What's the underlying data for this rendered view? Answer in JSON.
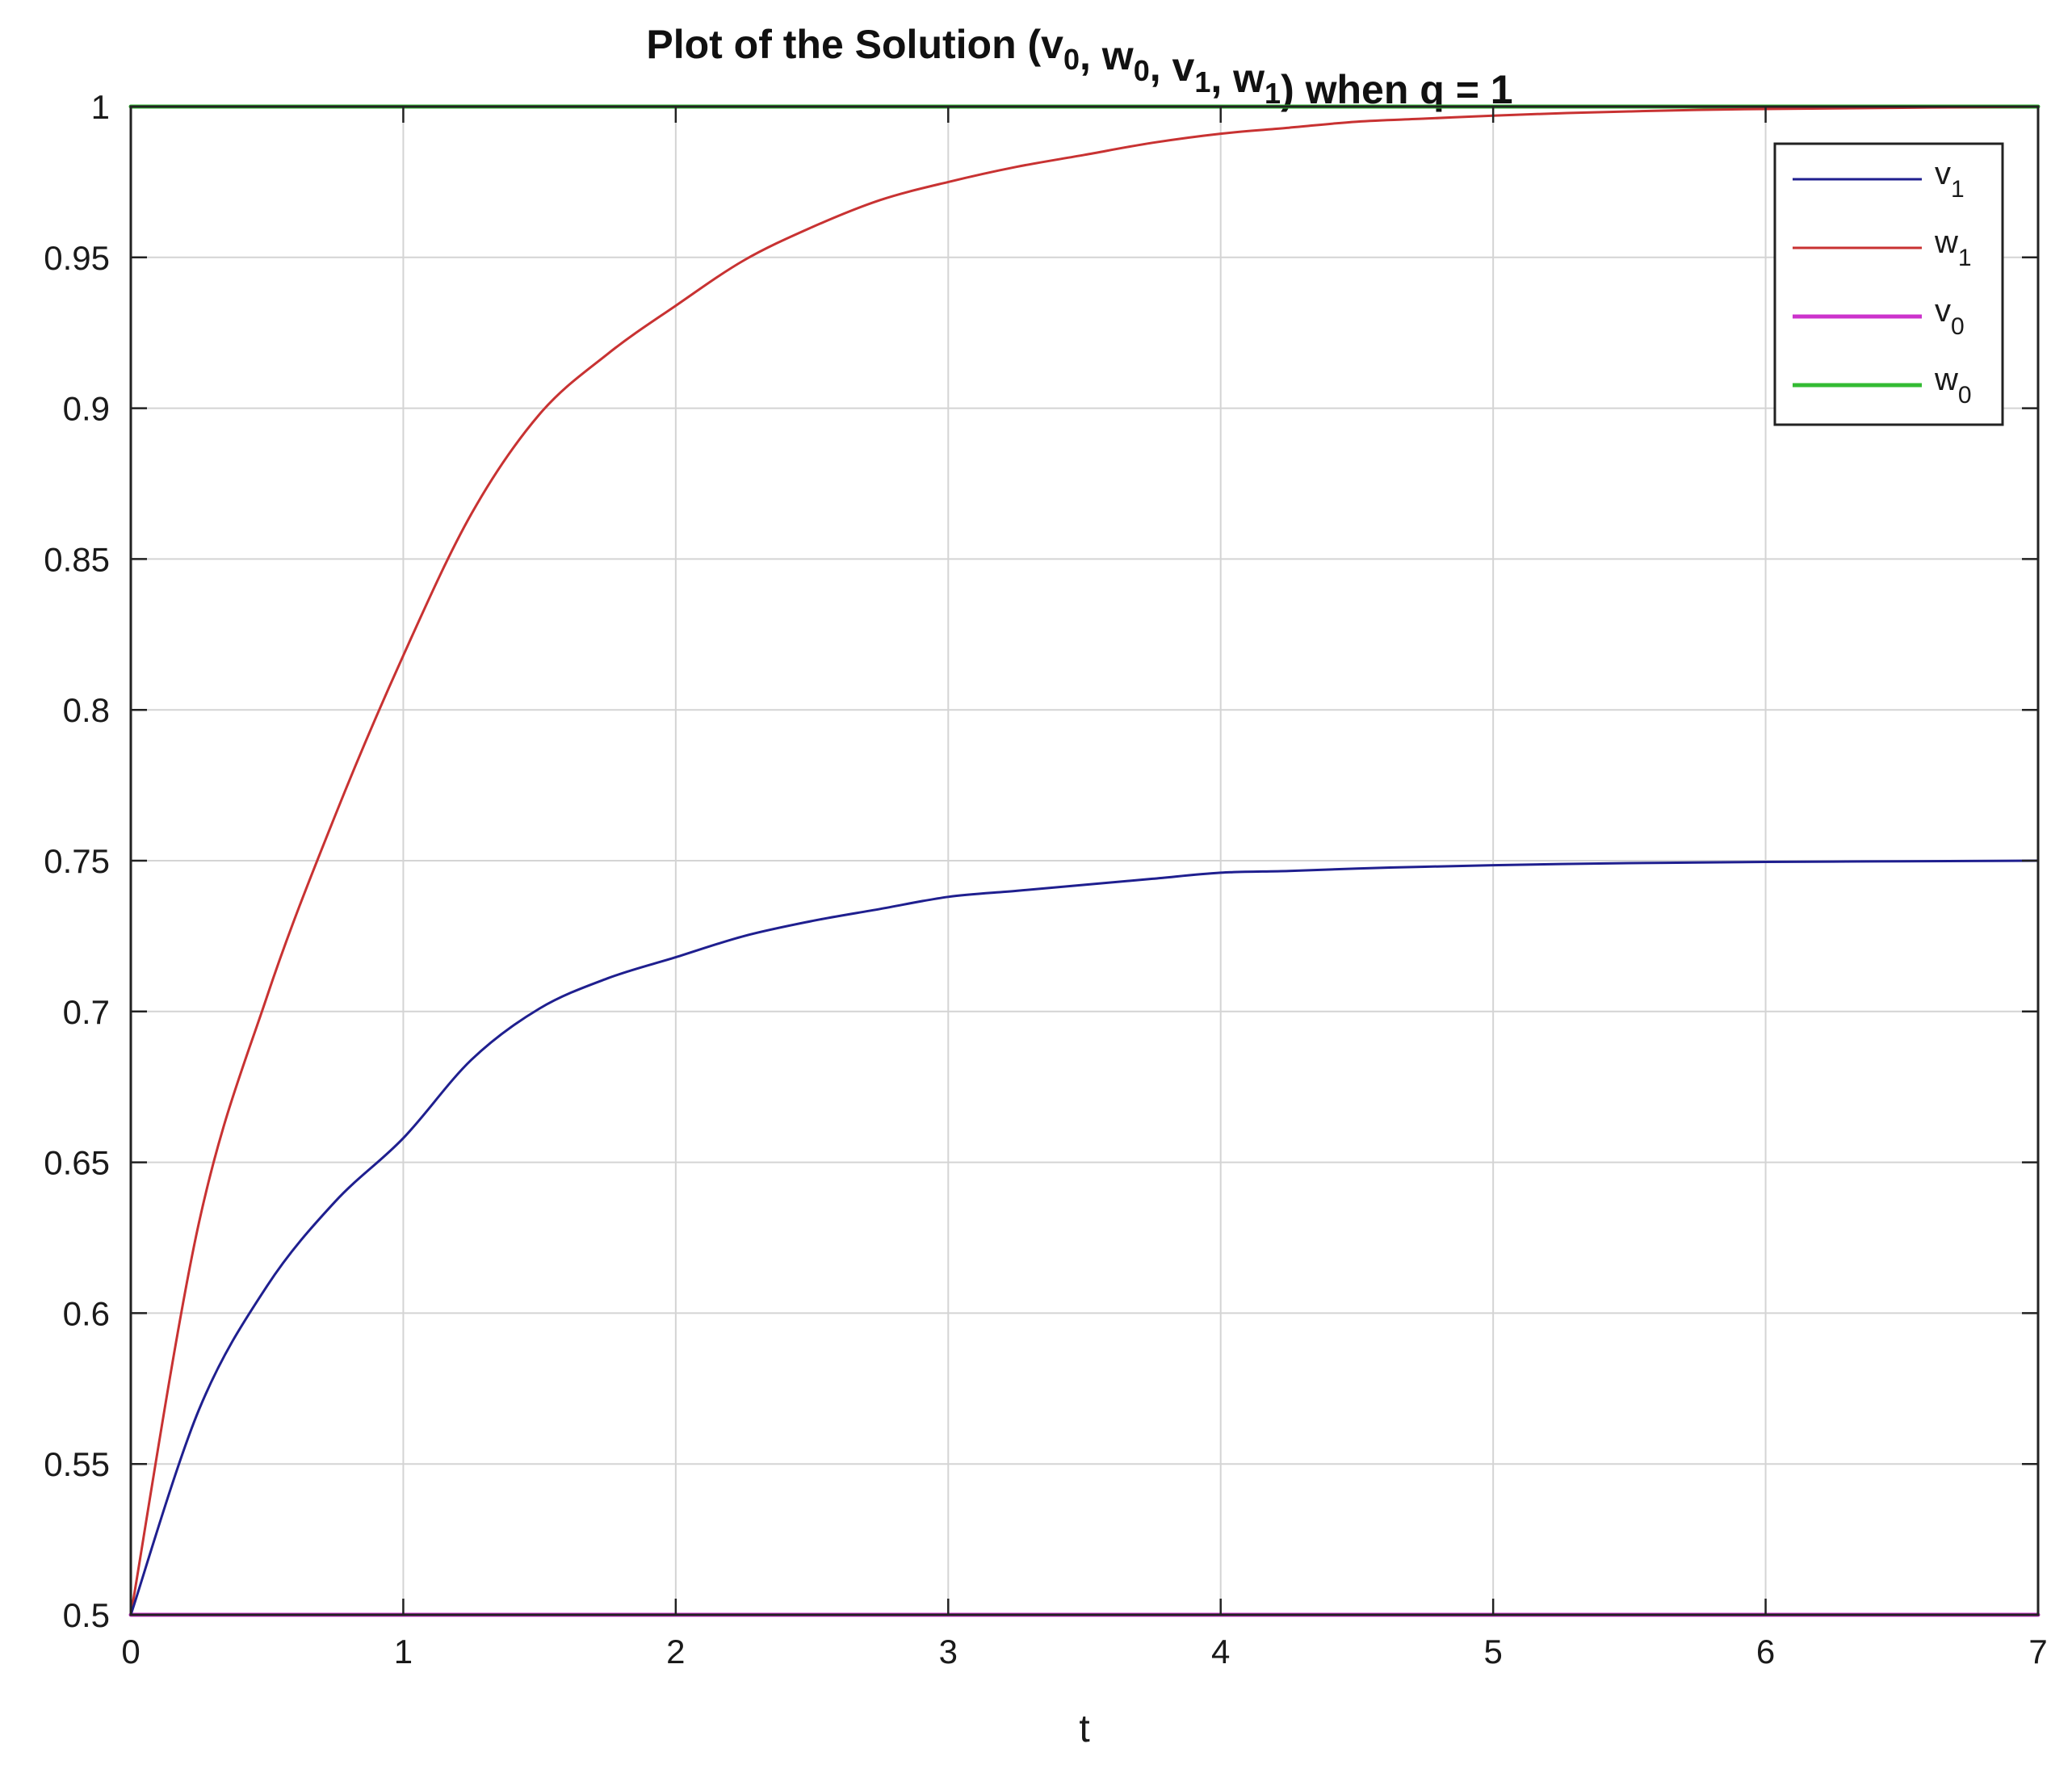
{
  "chart_data": {
    "type": "line",
    "title": {
      "main": "Plot of the Solution (v",
      "parts": [
        {
          "text": "Plot of the Solution (v",
          "sub": "0"
        },
        {
          "text": ", w",
          "sub": "0"
        },
        {
          "text": ", v",
          "sub": "1"
        },
        {
          "text": ", w",
          "sub": "1"
        },
        {
          "text": ") when q = 1",
          "sub": ""
        }
      ]
    },
    "xlabel": "t",
    "ylabel": "",
    "xlim": [
      0,
      7
    ],
    "ylim": [
      0.5,
      1
    ],
    "xticks": [
      0,
      1,
      2,
      3,
      4,
      5,
      6,
      7
    ],
    "yticks": [
      0.5,
      0.55,
      0.6,
      0.65,
      0.7,
      0.75,
      0.8,
      0.85,
      0.9,
      0.95,
      1
    ],
    "xtick_labels": [
      "0",
      "1",
      "2",
      "3",
      "4",
      "5",
      "6",
      "7"
    ],
    "ytick_labels": [
      "0.5",
      "0.55",
      "0.6",
      "0.65",
      "0.7",
      "0.75",
      "0.8",
      "0.85",
      "0.9",
      "0.95",
      "1"
    ],
    "grid": true,
    "legend_position": "top-right",
    "x": [
      0,
      0.25,
      0.5,
      0.75,
      1,
      1.25,
      1.5,
      1.75,
      2,
      2.25,
      2.5,
      2.75,
      3,
      3.25,
      3.5,
      3.75,
      4,
      4.25,
      4.5,
      4.75,
      5,
      5.25,
      5.5,
      5.75,
      6,
      6.25,
      6.5,
      6.75,
      7
    ],
    "series": [
      {
        "name": "v",
        "sub": "1",
        "color": "#1f1f8f",
        "values": [
          0.5,
          0.568,
          0.609,
          0.637,
          0.658,
          0.684,
          0.701,
          0.711,
          0.718,
          0.725,
          0.73,
          0.734,
          0.738,
          0.74,
          0.742,
          0.744,
          0.746,
          0.7466,
          0.7474,
          0.748,
          0.7485,
          0.7489,
          0.7492,
          0.7494,
          0.7496,
          0.7497,
          0.7498,
          0.7499,
          0.75
        ]
      },
      {
        "name": "w",
        "sub": "1",
        "color": "#c83232",
        "values": [
          0.5,
          0.63,
          0.705,
          0.765,
          0.818,
          0.865,
          0.898,
          0.918,
          0.934,
          0.949,
          0.96,
          0.969,
          0.975,
          0.98,
          0.984,
          0.988,
          0.991,
          0.993,
          0.995,
          0.996,
          0.997,
          0.9978,
          0.9984,
          0.9989,
          0.9992,
          0.9994,
          0.9996,
          0.9998,
          1
        ]
      },
      {
        "name": "v",
        "sub": "0",
        "color": "#cc33cc",
        "values": [
          0.5,
          0.5,
          0.5,
          0.5,
          0.5,
          0.5,
          0.5,
          0.5,
          0.5,
          0.5,
          0.5,
          0.5,
          0.5,
          0.5,
          0.5,
          0.5,
          0.5,
          0.5,
          0.5,
          0.5,
          0.5,
          0.5,
          0.5,
          0.5,
          0.5,
          0.5,
          0.5,
          0.5,
          0.5
        ]
      },
      {
        "name": "w",
        "sub": "0",
        "color": "#33bb33",
        "values": [
          1,
          1,
          1,
          1,
          1,
          1,
          1,
          1,
          1,
          1,
          1,
          1,
          1,
          1,
          1,
          1,
          1,
          1,
          1,
          1,
          1,
          1,
          1,
          1,
          1,
          1,
          1,
          1,
          1
        ]
      }
    ]
  }
}
